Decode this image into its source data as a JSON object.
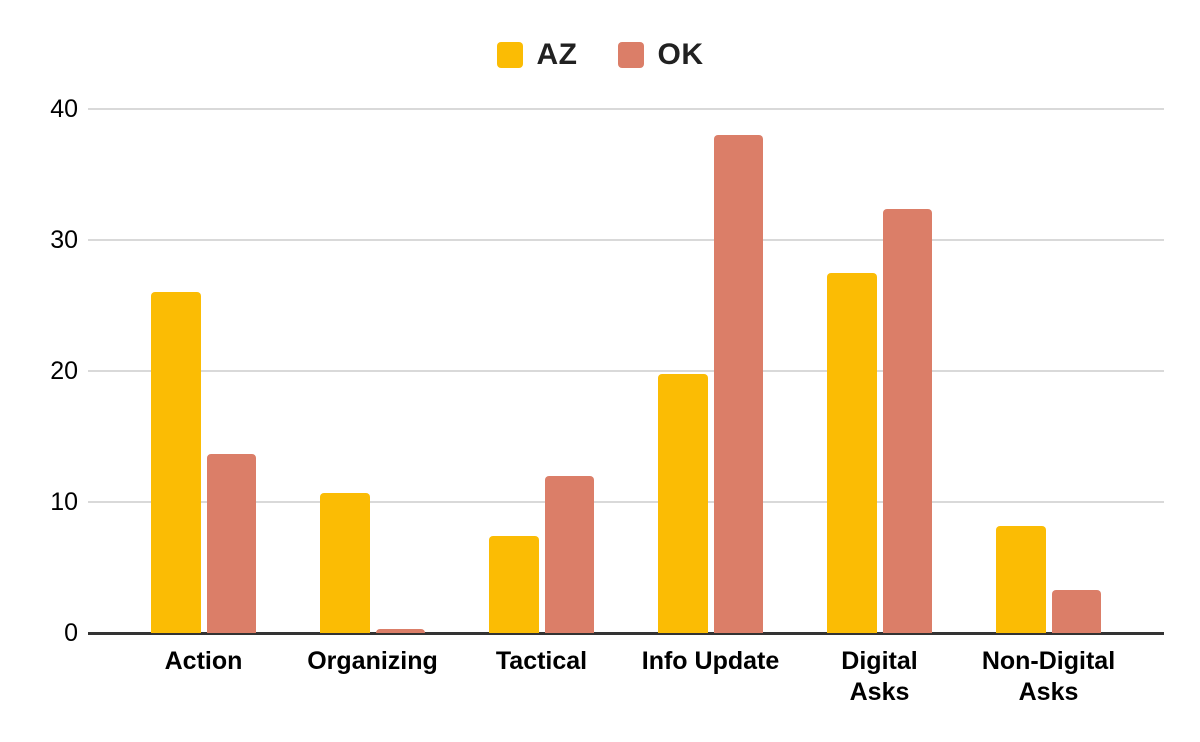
{
  "chart_data": {
    "type": "bar",
    "title": "",
    "categories": [
      "Action",
      "Organizing",
      "Tactical",
      "Info Update",
      "Digital\nAsks",
      "Non-Digital\nAsks"
    ],
    "series": [
      {
        "name": "AZ",
        "color": "#FBBC04",
        "values": [
          26.0,
          10.7,
          7.4,
          19.8,
          27.5,
          8.2
        ]
      },
      {
        "name": "OK",
        "color": "#DB7E68",
        "values": [
          13.7,
          0.3,
          12.0,
          38.0,
          32.4,
          3.3
        ]
      }
    ],
    "xlabel": "",
    "ylabel": "",
    "y_ticks": [
      0,
      10,
      20,
      30,
      40
    ],
    "ylim": [
      0,
      40
    ],
    "grid": true,
    "legend_position": "top-center",
    "colors": {
      "gridline": "#d9d9d9",
      "axis_line": "#333333",
      "text": "#000000"
    }
  }
}
